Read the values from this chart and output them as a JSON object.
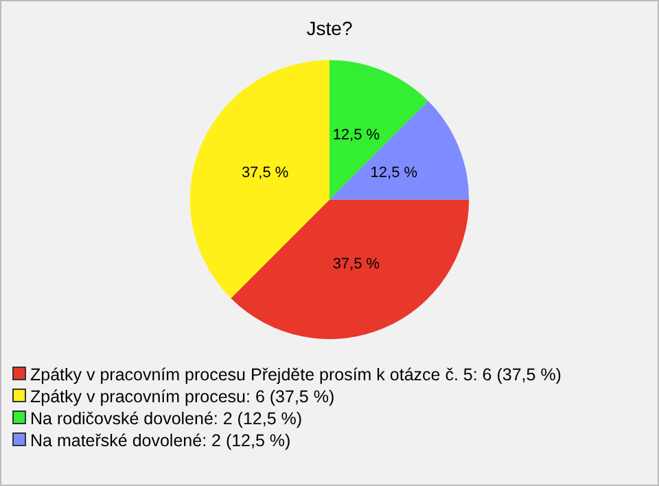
{
  "chart_data": {
    "type": "pie",
    "title": "Jste?",
    "categories": [
      "Zpátky v pracovním procesu Přejděte prosím k otázce č. 5: 6 (37,5 %)",
      "Zpátky v pracovním procesu: 6 (37,5 %)",
      "Na rodičovské dovolené: 2 (12,5 %)",
      "Na mateřské dovolené: 2 (12,5 %)"
    ],
    "values": [
      37.5,
      37.5,
      12.5,
      12.5
    ],
    "value_labels": [
      "37,5 %",
      "37,5 %",
      "12,5 %",
      "12,5 %"
    ],
    "colors": [
      "#e8372b",
      "#fff01a",
      "#33ee33",
      "#7f8cff"
    ],
    "legend": "bottom"
  }
}
